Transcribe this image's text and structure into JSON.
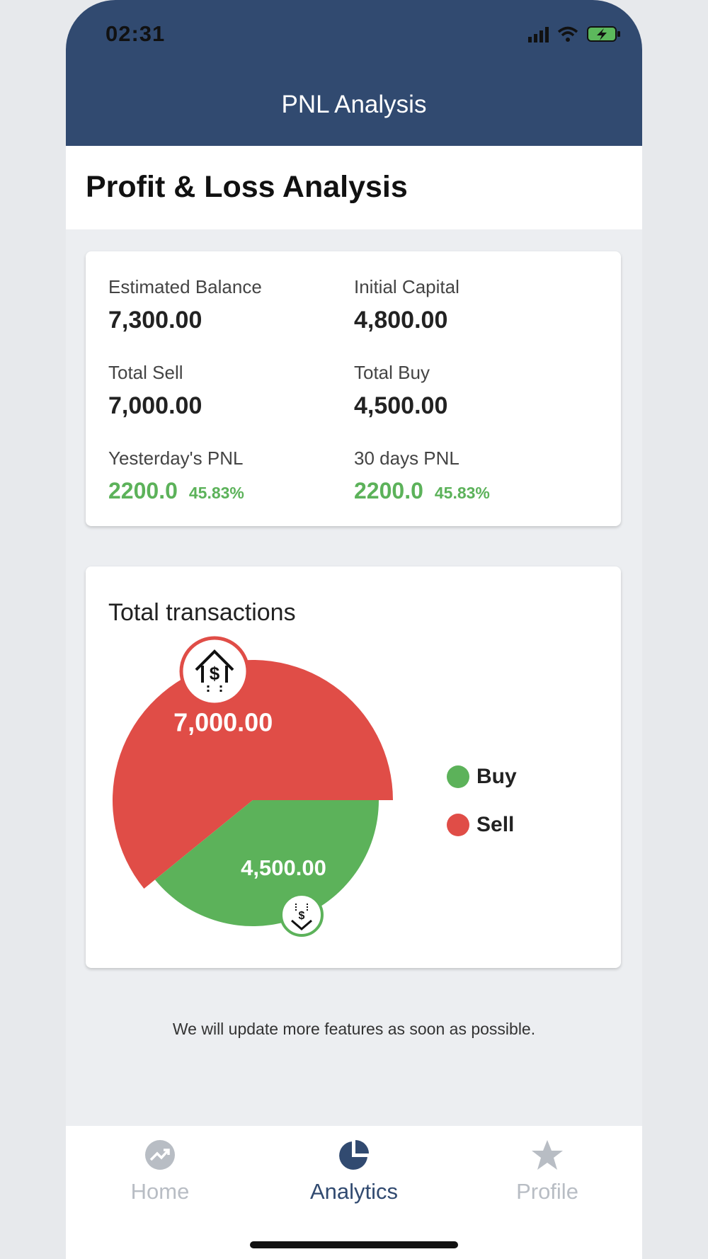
{
  "status_bar": {
    "time": "02:31"
  },
  "header": {
    "title": "PNL Analysis"
  },
  "page_title": "Profit & Loss Analysis",
  "summary": {
    "estimated_balance": {
      "label": "Estimated Balance",
      "value": "7,300.00"
    },
    "initial_capital": {
      "label": "Initial Capital",
      "value": "4,800.00"
    },
    "total_sell": {
      "label": "Total Sell",
      "value": "7,000.00"
    },
    "total_buy": {
      "label": "Total Buy",
      "value": "4,500.00"
    },
    "yesterday_pnl": {
      "label": "Yesterday's PNL",
      "value": "2200.0",
      "percent": "45.83%"
    },
    "thirty_day_pnl": {
      "label": "30 days PNL",
      "value": "2200.0",
      "percent": "45.83%"
    }
  },
  "transactions": {
    "title": "Total transactions",
    "legend": [
      {
        "label": "Buy",
        "color": "#5cb25a"
      },
      {
        "label": "Sell",
        "color": "#e04d47"
      }
    ]
  },
  "chart_data": {
    "type": "pie",
    "title": "Total transactions",
    "slices": [
      {
        "name": "Sell",
        "value": 7000,
        "label": "7,000.00",
        "color": "#e04d47",
        "icon": "money-up-icon"
      },
      {
        "name": "Buy",
        "value": 4500,
        "label": "4,500.00",
        "color": "#5cb25a",
        "icon": "money-down-icon"
      }
    ],
    "legend_position": "right"
  },
  "footer_note": "We will update more features as soon as possible.",
  "bottom_nav": {
    "items": [
      {
        "label": "Home",
        "icon": "trending-up-icon",
        "active": false
      },
      {
        "label": "Analytics",
        "icon": "pie-chart-icon",
        "active": true
      },
      {
        "label": "Profile",
        "icon": "star-icon",
        "active": false
      }
    ]
  }
}
